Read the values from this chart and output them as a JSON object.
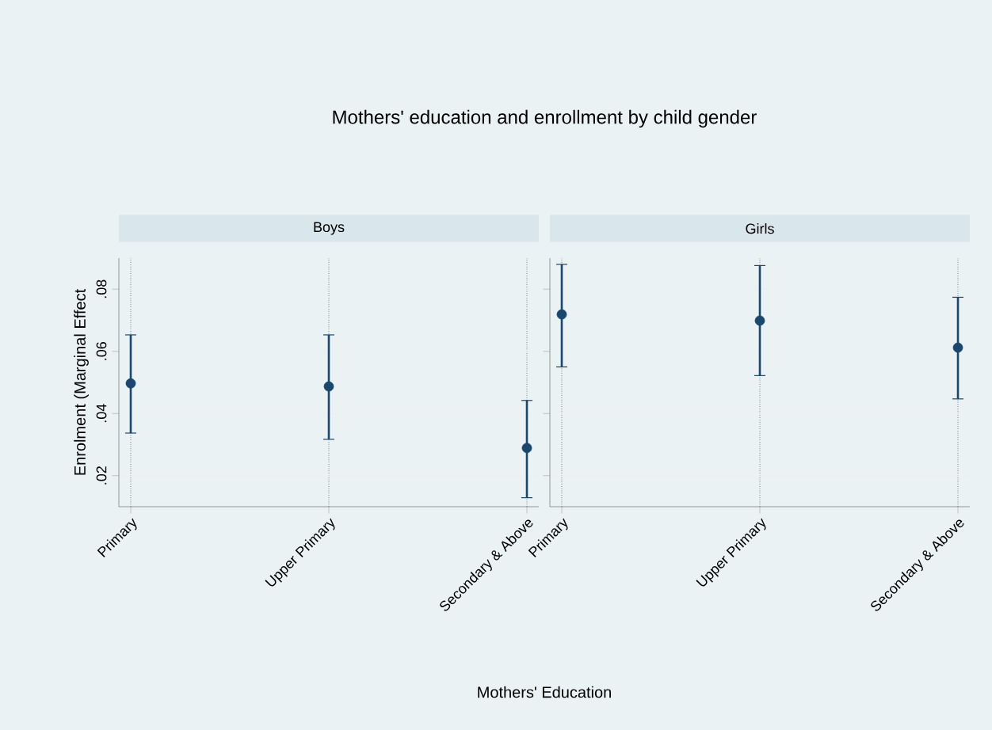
{
  "chart_data": [
    {
      "type": "scatter",
      "title": "Mothers' education and enrollment by child gender",
      "subtitle": "Boys",
      "xlabel": "Mothers' Education",
      "ylabel": "Enrolment (Marginal Effect",
      "categories": [
        "Primary",
        "Upper Primary",
        "Secondary & Above"
      ],
      "values": [
        0.0497,
        0.0487,
        0.0289
      ],
      "errors": [
        [
          0.0337,
          0.0653
        ],
        [
          0.0317,
          0.0653
        ],
        [
          0.0129,
          0.0442
        ]
      ],
      "color": "#1a476f",
      "marker": "circle",
      "grid": true,
      "ylim": [
        0.01,
        0.09
      ],
      "yticks": [
        {
          "value": 0.02,
          "label": ".02"
        },
        {
          "value": 0.04,
          "label": ".04"
        },
        {
          "value": 0.06,
          "label": ".06"
        },
        {
          "value": 0.08,
          "label": ".08"
        }
      ]
    },
    {
      "type": "scatter",
      "subtitle": "Girls",
      "categories": [
        "Primary",
        "Upper Primary",
        "Secondary & Above"
      ],
      "values": [
        0.0719,
        0.0699,
        0.0612
      ],
      "errors": [
        [
          0.055,
          0.088
        ],
        [
          0.0522,
          0.0876
        ],
        [
          0.0447,
          0.0774
        ]
      ],
      "color": "#1a476f",
      "marker": "circle",
      "grid": true,
      "tick_labels": "x",
      "ylim": [
        0.01,
        0.09
      ],
      "yticks": [
        {
          "value": 0.02,
          "label": null
        },
        {
          "value": 0.04,
          "label": null
        },
        {
          "value": 0.06,
          "label": null
        },
        {
          "value": 0.08,
          "label": null
        }
      ]
    }
  ]
}
